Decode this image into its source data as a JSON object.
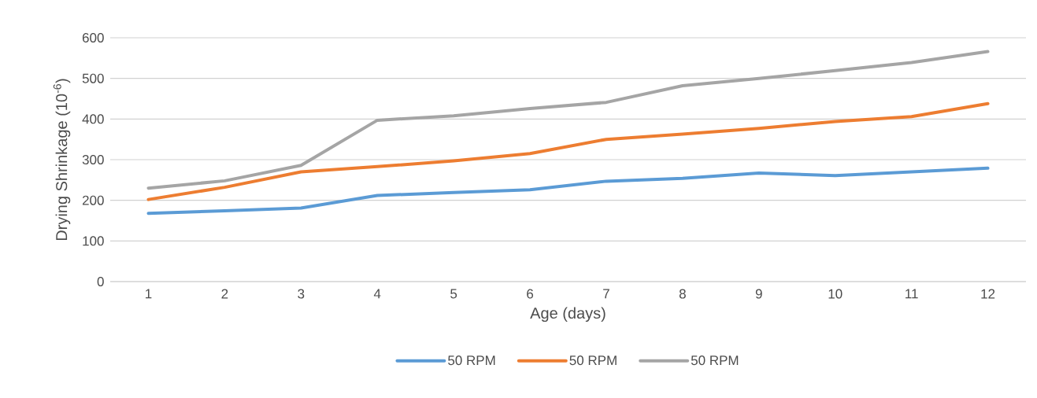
{
  "chart_data": {
    "type": "line",
    "xlabel": "Age (days)",
    "ylabel": "Drying Shrinkage (10$^{-6}$)",
    "categories": [
      "1",
      "2",
      "3",
      "4",
      "5",
      "6",
      "7",
      "8",
      "9",
      "10",
      "11",
      "12"
    ],
    "series": [
      {
        "name": "50 RPM",
        "color": "#5b9bd5",
        "values": [
          168,
          174,
          181,
          212,
          219,
          226,
          247,
          254,
          267,
          261,
          270,
          279
        ]
      },
      {
        "name": "50 RPM",
        "color": "#ed7d31",
        "values": [
          202,
          232,
          270,
          283,
          297,
          315,
          350,
          363,
          377,
          394,
          406,
          438
        ]
      },
      {
        "name": "50 RPM",
        "color": "#a5a5a5",
        "values": [
          230,
          248,
          286,
          397,
          408,
          426,
          441,
          482,
          500,
          519,
          539,
          566
        ]
      }
    ],
    "ylim": [
      0,
      600
    ],
    "yticks": [
      0,
      100,
      200,
      300,
      400,
      500,
      600
    ],
    "grid": "y",
    "legend": "bottom",
    "marker": "none",
    "line_style": "solid"
  }
}
